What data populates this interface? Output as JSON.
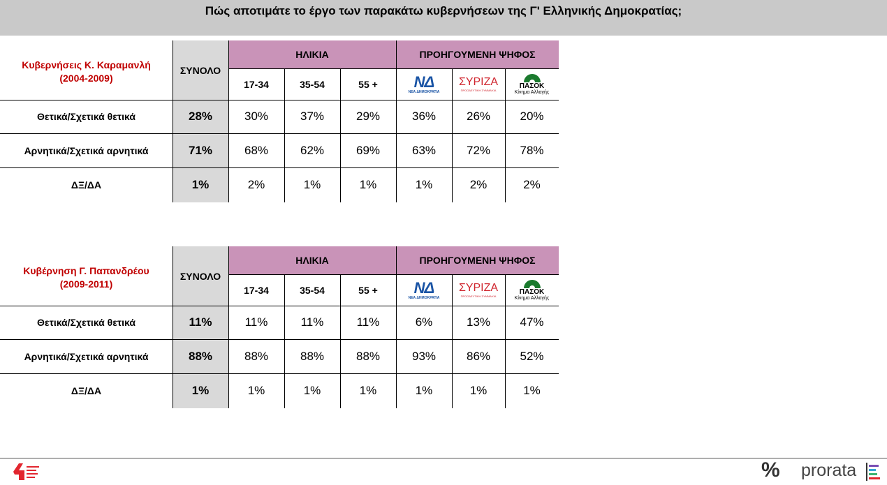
{
  "title": "Πώς αποτιμάτε το έργο των παρακάτω κυβερνήσεων της Γ' Ελληνικής Δημοκρατίας;",
  "headers": {
    "total": "ΣΥΝΟΛΟ",
    "age_group": "ΗΛΙΚΙΑ",
    "prev_vote_group": "ΠΡΟΗΓΟΥΜΕΝΗ ΨΗΦΟΣ",
    "ages": [
      "17-34",
      "35-54",
      "55 +"
    ],
    "parties": [
      {
        "mark": "ΝΔ",
        "sub": "ΝΕΑ ΔΗΜΟΚΡΑΤΙΑ",
        "color": "#1a54a5",
        "icon": "nd-logo-icon"
      },
      {
        "mark": "ΣΥΡΙΖΑ",
        "sub": "ΠΡΟΟΔΕΥΤΙΚΗ ΣΥΜΜΑΧΙΑ",
        "color": "#d0262f",
        "icon": "syriza-logo-icon"
      },
      {
        "mark": "ΠΑΣΟΚ",
        "sub": "Κίνημα Αλλαγής",
        "color": "#1b7a2e",
        "icon": "pasok-logo-icon"
      }
    ]
  },
  "tables": [
    {
      "government": "Κυβερνήσεις Κ. Καραμανλή",
      "period": "(2004-2009)",
      "rows": [
        {
          "label": "Θετικά/Σχετικά θετικά",
          "total": "28%",
          "values": [
            "30%",
            "37%",
            "29%",
            "36%",
            "26%",
            "20%"
          ]
        },
        {
          "label": "Αρνητικά/Σχετικά αρνητικά",
          "total": "71%",
          "values": [
            "68%",
            "62%",
            "69%",
            "63%",
            "72%",
            "78%"
          ]
        },
        {
          "label": "ΔΞ/ΔΑ",
          "total": "1%",
          "values": [
            "2%",
            "1%",
            "1%",
            "1%",
            "2%",
            "2%"
          ]
        }
      ]
    },
    {
      "government": "Κυβέρνηση Γ. Παπανδρέου",
      "period": "(2009-2011)",
      "rows": [
        {
          "label": "Θετικά/Σχετικά θετικά",
          "total": "11%",
          "values": [
            "11%",
            "11%",
            "11%",
            "6%",
            "13%",
            "47%"
          ]
        },
        {
          "label": "Αρνητικά/Σχετικά αρνητικά",
          "total": "88%",
          "values": [
            "88%",
            "88%",
            "88%",
            "93%",
            "86%",
            "52%"
          ]
        },
        {
          "label": "ΔΞ/ΔΑ",
          "total": "1%",
          "values": [
            "1%",
            "1%",
            "1%",
            "1%",
            "1%",
            "1%"
          ]
        }
      ]
    }
  ],
  "footer": {
    "brand": "prorata",
    "percent_mark": "%",
    "left_logo_icon": "left-logo-icon"
  }
}
